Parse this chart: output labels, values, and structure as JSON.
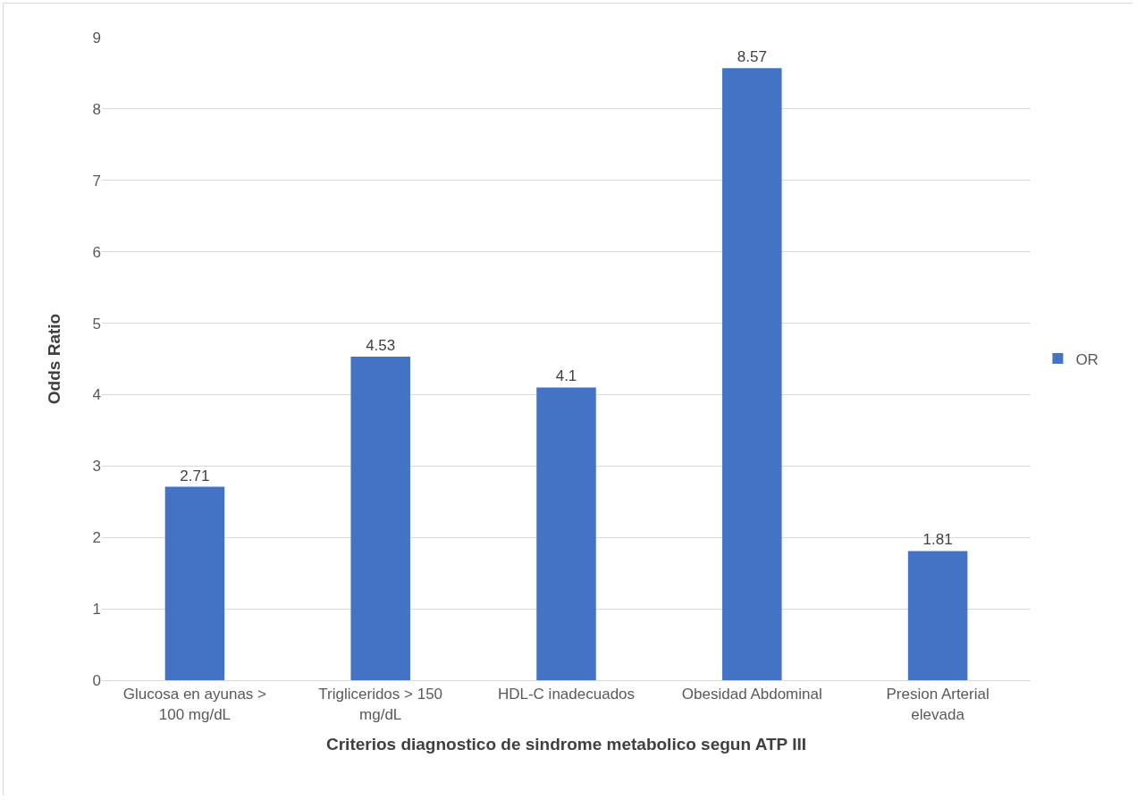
{
  "chart_data": {
    "type": "bar",
    "xlabel": "Criterios diagnostico de sindrome metabolico segun ATP III",
    "ylabel": "Odds Ratio",
    "categories": [
      "Glucosa en ayunas > 100 mg/dL",
      "Trigliceridos > 150 mg/dL",
      "HDL-C inadecuados",
      "Obesidad Abdominal",
      "Presion Arterial elevada"
    ],
    "series": [
      {
        "name": "OR",
        "color": "#4472c4",
        "values": [
          2.71,
          4.53,
          4.1,
          8.57,
          1.81
        ]
      }
    ],
    "ylim": [
      0,
      9
    ],
    "yticks": [
      0,
      1,
      2,
      3,
      4,
      5,
      6,
      7,
      8,
      9
    ],
    "grid": "y",
    "legend": "right",
    "data_labels": true
  }
}
